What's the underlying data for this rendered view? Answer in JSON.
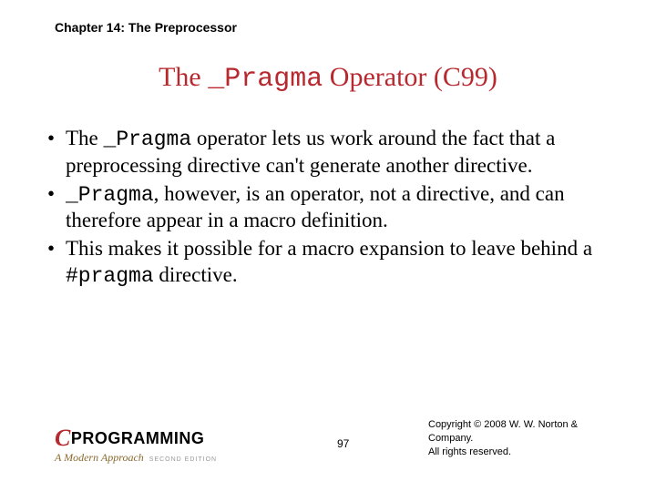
{
  "chapter_header": "Chapter 14: The Preprocessor",
  "title": {
    "part1": "The ",
    "code": "_Pragma",
    "part2": " Operator (C99)"
  },
  "bullets": [
    {
      "pre": "The ",
      "code1": "_Pragma",
      "post": " operator lets us work around the fact that a preprocessing directive can't generate another directive."
    },
    {
      "pre": "",
      "code1": "_Pragma",
      "post": ", however, is an operator, not a directive, and can therefore appear in a macro definition."
    },
    {
      "pre": "This makes it possible for a macro expansion to leave behind a ",
      "code1": "#pragma",
      "post": " directive."
    }
  ],
  "logo": {
    "c": "C",
    "text": "PROGRAMMING",
    "subtitle": "A Modern Approach",
    "edition": "SECOND EDITION"
  },
  "page_number": "97",
  "copyright_line1": "Copyright © 2008 W. W. Norton & Company.",
  "copyright_line2": "All rights reserved.",
  "colors": {
    "accent": "#b8292f",
    "subtitle": "#8a6a2f"
  }
}
